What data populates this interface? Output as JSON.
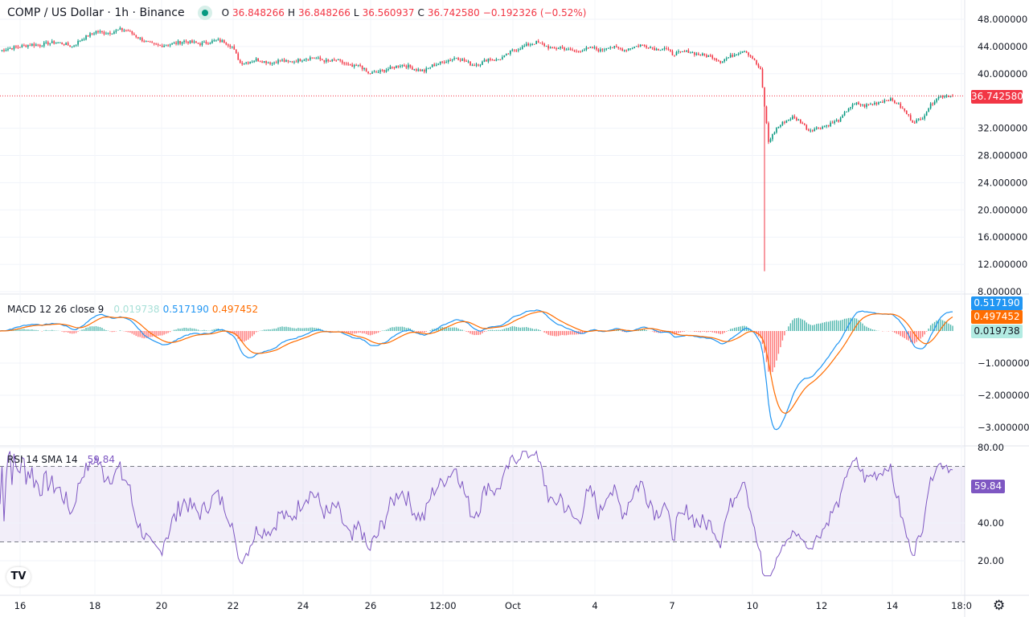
{
  "header": {
    "symbol_title": "COMP / US Dollar · 1h · Binance",
    "status_color": "#089981",
    "o_label": "O",
    "o": "36.848266",
    "h_label": "H",
    "h": "36.848266",
    "l_label": "L",
    "l": "36.560937",
    "c_label": "C",
    "c": "36.742580",
    "change": "−0.192326 (−0.52%)"
  },
  "macd_legend": {
    "title": "MACD 12 26 close 9",
    "histogram": "0.019738",
    "macd": "0.517190",
    "signal": "0.497452"
  },
  "rsi_legend": {
    "title": "RSI 14 SMA 14",
    "value": "59.84"
  },
  "price_tag": "36.742580",
  "macd_tags": {
    "macd": "0.517190",
    "signal": "0.497452",
    "histogram": "0.019738"
  },
  "rsi_tag": "59.84",
  "colors": {
    "up": "#089981",
    "down": "#f23645",
    "macd": "#2196f3",
    "signal": "#ff6d00",
    "hist_up": "#26a69a",
    "hist_down": "#ff5252",
    "rsi": "#7e57c2"
  },
  "chart_data": [
    {
      "type": "candlestick",
      "title": "COMP / US Dollar · 1h · Binance",
      "ylim": [
        8,
        48
      ],
      "y_ticks": [
        "48.000000",
        "44.000000",
        "40.000000",
        "32.000000",
        "28.000000",
        "24.000000",
        "20.000000",
        "16.000000",
        "12.000000",
        "8.000000"
      ],
      "x_ticks": [
        "16",
        "18",
        "20",
        "22",
        "24",
        "26",
        "12:00",
        "Oct",
        "4",
        "7",
        "10",
        "12",
        "14",
        "18:0"
      ],
      "last_price": 36.74258,
      "crash_low": 11.0,
      "closes": [
        43.4,
        43.7,
        43.9,
        44.1,
        44.3,
        44.2,
        44.5,
        44.6,
        44.4,
        44.0,
        44.9,
        45.6,
        46.2,
        46.0,
        46.1,
        46.5,
        46.3,
        45.5,
        44.8,
        44.3,
        44.1,
        44.3,
        44.5,
        44.8,
        44.6,
        44.4,
        44.6,
        44.9,
        44.7,
        44.0,
        41.6,
        41.7,
        42.1,
        41.8,
        41.6,
        42.0,
        41.7,
        41.9,
        42.2,
        42.4,
        42.1,
        41.8,
        42.0,
        41.5,
        41.0,
        41.2,
        40.0,
        40.2,
        40.5,
        40.9,
        41.3,
        41.1,
        40.6,
        40.4,
        41.2,
        41.6,
        42.0,
        42.4,
        41.9,
        41.3,
        41.5,
        42.2,
        42.0,
        42.5,
        43.4,
        43.8,
        44.3,
        44.6,
        44.2,
        43.6,
        43.9,
        43.5,
        43.3,
        43.6,
        43.8,
        43.4,
        44.0,
        43.8,
        43.5,
        43.9,
        44.2,
        44.0,
        43.6,
        43.8,
        42.9,
        43.1,
        43.3,
        42.9,
        42.7,
        42.5,
        41.8,
        42.4,
        43.0,
        43.5,
        42.3,
        40.5,
        30.0,
        32.0,
        33.0,
        33.6,
        33.0,
        31.7,
        32.0,
        32.3,
        32.8,
        33.3,
        35.0,
        35.6,
        35.3,
        35.6,
        35.9,
        36.3,
        35.7,
        34.5,
        33.0,
        33.2,
        35.0,
        36.5,
        36.8,
        36.74
      ]
    },
    {
      "type": "line",
      "title": "MACD 12 26 close 9",
      "ylim": [
        -3.2,
        1.0
      ],
      "y_ticks": [
        "−1.000000",
        "−2.000000",
        "−3.000000"
      ],
      "series": [
        {
          "name": "MACD",
          "last": 0.51719
        },
        {
          "name": "Signal",
          "last": 0.497452
        },
        {
          "name": "Histogram",
          "last": 0.019738
        }
      ]
    },
    {
      "type": "line",
      "title": "RSI 14 SMA 14",
      "ylim": [
        10,
        80
      ],
      "y_ticks": [
        "80.00",
        "40.00",
        "20.00"
      ],
      "bands": [
        30,
        70
      ],
      "last": 59.84
    }
  ]
}
